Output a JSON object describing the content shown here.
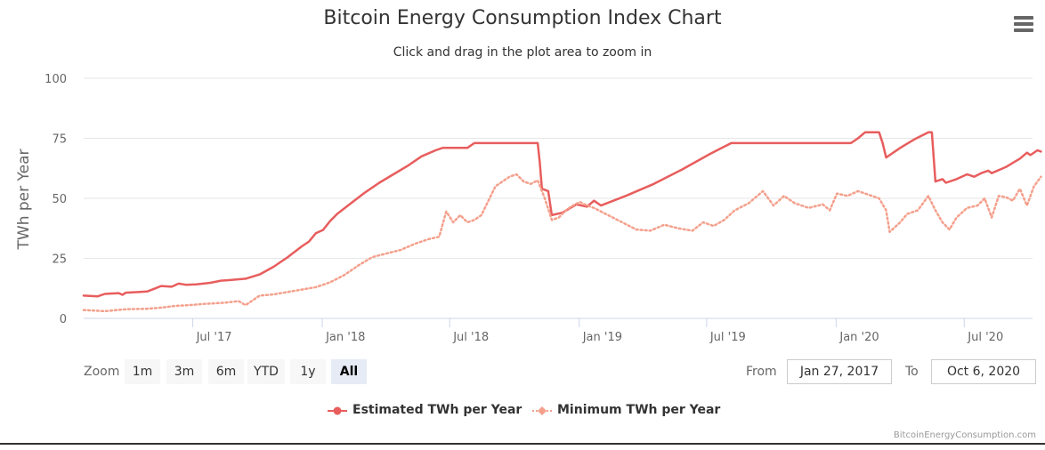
{
  "chart_data": {
    "type": "line",
    "title": "Bitcoin Energy Consumption Index Chart",
    "subtitle": "Click and drag in the plot area to zoom in",
    "ylabel": "TWh per Year",
    "xlabel": "",
    "ylim": [
      0,
      100
    ],
    "yticks": [
      "0",
      "25",
      "50",
      "75",
      "100"
    ],
    "ytick_values": [
      0,
      25,
      50,
      75,
      100
    ],
    "xticks": [
      "Jul '17",
      "Jan '18",
      "Jul '18",
      "Jan '19",
      "Jul '19",
      "Jan '20",
      "Jul '20"
    ],
    "xtick_days": [
      155,
      339,
      520,
      704,
      885,
      1069,
      1251
    ],
    "x_unit": "days since Jan 27, 2017",
    "xlim": [
      0,
      1348
    ],
    "series": [
      {
        "name": "Estimated TWh per Year",
        "color": "#e85d5d",
        "style": "solid",
        "points": [
          [
            0,
            9.5
          ],
          [
            20,
            9.2
          ],
          [
            30,
            10.2
          ],
          [
            50,
            10.5
          ],
          [
            55,
            9.8
          ],
          [
            60,
            10.7
          ],
          [
            80,
            11
          ],
          [
            90,
            11.2
          ],
          [
            100,
            12.3
          ],
          [
            110,
            13.5
          ],
          [
            125,
            13.2
          ],
          [
            135,
            14.5
          ],
          [
            145,
            14
          ],
          [
            160,
            14.2
          ],
          [
            180,
            14.8
          ],
          [
            195,
            15.7
          ],
          [
            210,
            16
          ],
          [
            230,
            16.5
          ],
          [
            250,
            18.3
          ],
          [
            270,
            21.5
          ],
          [
            290,
            25.5
          ],
          [
            310,
            30
          ],
          [
            320,
            32
          ],
          [
            330,
            35.5
          ],
          [
            340,
            36.8
          ],
          [
            350,
            40.5
          ],
          [
            360,
            43.5
          ],
          [
            380,
            48
          ],
          [
            400,
            52.5
          ],
          [
            420,
            56.5
          ],
          [
            440,
            60
          ],
          [
            460,
            63.5
          ],
          [
            480,
            67.5
          ],
          [
            500,
            70
          ],
          [
            510,
            71
          ],
          [
            530,
            71
          ],
          [
            545,
            71
          ],
          [
            555,
            73
          ],
          [
            620,
            73
          ],
          [
            645,
            73
          ],
          [
            648,
            65
          ],
          [
            651,
            54
          ],
          [
            660,
            53
          ],
          [
            665,
            43
          ],
          [
            680,
            44
          ],
          [
            700,
            47.5
          ],
          [
            715,
            46.5
          ],
          [
            725,
            49
          ],
          [
            735,
            47
          ],
          [
            770,
            51
          ],
          [
            810,
            56
          ],
          [
            850,
            62
          ],
          [
            890,
            68.5
          ],
          [
            920,
            73
          ],
          [
            1000,
            73
          ],
          [
            1050,
            73
          ],
          [
            1090,
            73
          ],
          [
            1100,
            75
          ],
          [
            1110,
            77.5
          ],
          [
            1130,
            77.5
          ],
          [
            1135,
            73
          ],
          [
            1140,
            67
          ],
          [
            1160,
            71
          ],
          [
            1180,
            74.5
          ],
          [
            1200,
            77.5
          ],
          [
            1205,
            77.5
          ],
          [
            1210,
            57
          ],
          [
            1220,
            58
          ],
          [
            1225,
            56.5
          ],
          [
            1240,
            58
          ],
          [
            1255,
            60
          ],
          [
            1265,
            59
          ],
          [
            1275,
            60.5
          ],
          [
            1285,
            61.5
          ],
          [
            1290,
            60.5
          ],
          [
            1310,
            63
          ],
          [
            1330,
            66.5
          ],
          [
            1340,
            69
          ],
          [
            1345,
            68
          ],
          [
            1355,
            70
          ],
          [
            1360,
            69.5
          ]
        ]
      },
      {
        "name": "Minimum TWh per Year",
        "color": "#f4a08c",
        "style": "dotted",
        "points": [
          [
            0,
            3.5
          ],
          [
            30,
            3
          ],
          [
            60,
            3.8
          ],
          [
            90,
            4
          ],
          [
            110,
            4.5
          ],
          [
            130,
            5.2
          ],
          [
            150,
            5.5
          ],
          [
            170,
            6
          ],
          [
            200,
            6.5
          ],
          [
            220,
            7.2
          ],
          [
            230,
            5.5
          ],
          [
            250,
            9.5
          ],
          [
            270,
            10
          ],
          [
            290,
            11
          ],
          [
            310,
            12
          ],
          [
            330,
            13
          ],
          [
            350,
            15
          ],
          [
            370,
            18
          ],
          [
            390,
            22
          ],
          [
            410,
            25.5
          ],
          [
            430,
            27
          ],
          [
            450,
            28.5
          ],
          [
            470,
            31
          ],
          [
            490,
            33
          ],
          [
            505,
            34
          ],
          [
            515,
            44.5
          ],
          [
            525,
            40
          ],
          [
            535,
            43
          ],
          [
            545,
            40
          ],
          [
            555,
            41
          ],
          [
            565,
            43
          ],
          [
            575,
            49
          ],
          [
            585,
            55
          ],
          [
            595,
            57
          ],
          [
            605,
            59
          ],
          [
            615,
            60
          ],
          [
            625,
            57
          ],
          [
            635,
            56
          ],
          [
            645,
            57.5
          ],
          [
            655,
            50
          ],
          [
            665,
            41
          ],
          [
            675,
            42
          ],
          [
            685,
            45
          ],
          [
            695,
            47
          ],
          [
            705,
            48.5
          ],
          [
            715,
            47
          ],
          [
            725,
            46
          ],
          [
            745,
            43
          ],
          [
            765,
            40
          ],
          [
            785,
            37
          ],
          [
            805,
            36.5
          ],
          [
            825,
            39
          ],
          [
            845,
            37.5
          ],
          [
            865,
            36.5
          ],
          [
            880,
            40
          ],
          [
            895,
            38.5
          ],
          [
            910,
            41
          ],
          [
            925,
            45
          ],
          [
            945,
            48
          ],
          [
            965,
            53
          ],
          [
            980,
            47
          ],
          [
            995,
            51
          ],
          [
            1010,
            48
          ],
          [
            1030,
            46
          ],
          [
            1050,
            47.5
          ],
          [
            1060,
            45
          ],
          [
            1070,
            52
          ],
          [
            1085,
            51
          ],
          [
            1100,
            53
          ],
          [
            1115,
            51.5
          ],
          [
            1130,
            50
          ],
          [
            1140,
            45
          ],
          [
            1145,
            36
          ],
          [
            1160,
            40
          ],
          [
            1170,
            43.5
          ],
          [
            1185,
            45
          ],
          [
            1200,
            51
          ],
          [
            1210,
            45
          ],
          [
            1220,
            40
          ],
          [
            1230,
            37
          ],
          [
            1240,
            42
          ],
          [
            1255,
            46
          ],
          [
            1270,
            47
          ],
          [
            1280,
            50
          ],
          [
            1290,
            42
          ],
          [
            1300,
            51
          ],
          [
            1310,
            50.5
          ],
          [
            1320,
            49
          ],
          [
            1330,
            54
          ],
          [
            1340,
            47
          ],
          [
            1350,
            55
          ],
          [
            1360,
            59
          ]
        ]
      }
    ]
  },
  "toolbar": {
    "menu_icon": "hamburger-menu-icon",
    "zoom_label": "Zoom",
    "zoom_buttons": [
      "1m",
      "3m",
      "6m",
      "YTD",
      "1y",
      "All"
    ],
    "zoom_active": "All",
    "from_label": "From",
    "from_value": "Jan 27, 2017",
    "to_label": "To",
    "to_value": "Oct 6, 2020"
  },
  "credit": "BitcoinEnergyConsumption.com"
}
